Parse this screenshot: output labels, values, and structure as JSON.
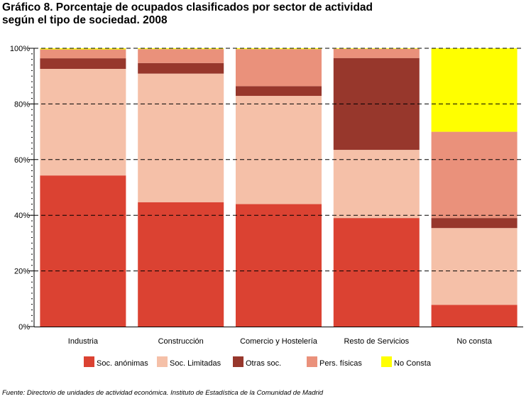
{
  "title_line1": "Gráfico 8. Porcentaje de ocupados clasificados por sector de actividad",
  "title_line2": "según el tipo de sociedad. 2008",
  "source": "Fuente: Directorio de unidades de actividad económica. Instituto de Estadística de la Comunidad de Madrid",
  "chart_data": {
    "type": "bar",
    "stacked": true,
    "categories": [
      "Industria",
      "Construcción",
      "Comercio y Hostelería",
      "Resto de Servicios",
      "No consta"
    ],
    "series": [
      {
        "name": "Soc. anónimas",
        "color": "#db4232",
        "values": [
          54.3,
          44.7,
          44.0,
          39.0,
          7.8
        ]
      },
      {
        "name": "Soc. Limitadas",
        "color": "#f5c0a8",
        "values": [
          38.3,
          46.2,
          38.9,
          24.5,
          27.6
        ]
      },
      {
        "name": "Otras soc.",
        "color": "#97372c",
        "values": [
          3.8,
          3.8,
          3.5,
          33.0,
          3.6
        ]
      },
      {
        "name": "Pers. físicas",
        "color": "#ea917b",
        "values": [
          3.2,
          5.0,
          13.3,
          3.3,
          31.0
        ]
      },
      {
        "name": "No Consta",
        "color": "#ffff00",
        "values": [
          0.4,
          0.3,
          0.3,
          0.2,
          30.0
        ]
      }
    ],
    "yticks": [
      "0%",
      "20%",
      "40%",
      "60%",
      "80%",
      "100%"
    ],
    "ylim": [
      0,
      100
    ],
    "grid": true,
    "legend_position": "bottom"
  }
}
